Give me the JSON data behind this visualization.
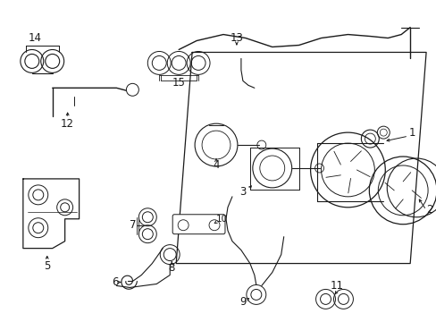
{
  "background_color": "#ffffff",
  "line_color": "#1a1a1a",
  "fig_width": 4.89,
  "fig_height": 3.6,
  "dpi": 100,
  "font_size": 8.5
}
